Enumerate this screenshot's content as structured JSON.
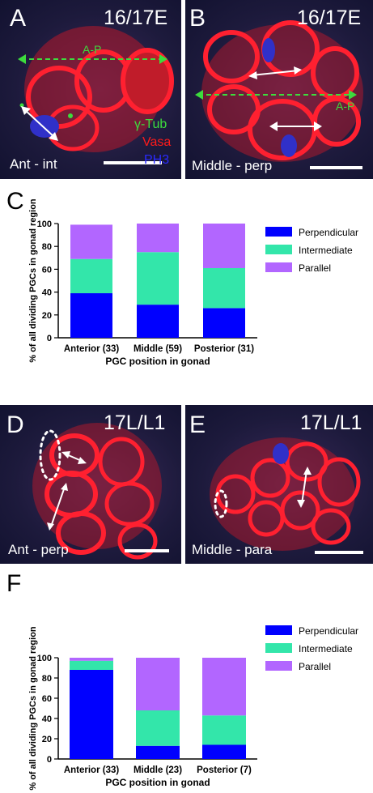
{
  "panels": {
    "A": {
      "letter": "A",
      "stage": "16/17E",
      "axis_label": "A-P",
      "stains": [
        {
          "label": "γ-Tub",
          "color": "#3ddc3d"
        },
        {
          "label": "Vasa",
          "color": "#ff1a1a"
        },
        {
          "label": "PH3",
          "color": "#2a2aff"
        }
      ],
      "condition": "Ant - int"
    },
    "B": {
      "letter": "B",
      "stage": "16/17E",
      "axis_label": "A-P",
      "condition": "Middle - perp"
    },
    "C": {
      "letter": "C"
    },
    "D": {
      "letter": "D",
      "stage": "17L/L1",
      "condition": "Ant - perp"
    },
    "E": {
      "letter": "E",
      "stage": "17L/L1",
      "condition": "Middle - para"
    },
    "F": {
      "letter": "F"
    }
  },
  "colors": {
    "perpendicular": "#0000ff",
    "intermediate": "#33e6aa",
    "parallel": "#b266ff",
    "cell_red": "#e0202a",
    "scale_bar": "#ffffff"
  },
  "chart_data": [
    {
      "type": "bar",
      "stacked": true,
      "categories": [
        "Anterior (33)",
        "Middle (59)",
        "Posterior (31)"
      ],
      "series": [
        {
          "name": "Perpendicular",
          "values": [
            39,
            29,
            26
          ]
        },
        {
          "name": "Intermediate",
          "values": [
            30,
            46,
            35
          ]
        },
        {
          "name": "Parallel",
          "values": [
            30,
            25,
            39
          ]
        }
      ],
      "xlabel": "PGC position in gonad",
      "ylabel": "% of all dividing  PGCs in gonad region",
      "ylim": [
        0,
        100
      ],
      "yticks": [
        0,
        20,
        40,
        60,
        80,
        100
      ],
      "legend": "right"
    },
    {
      "type": "bar",
      "stacked": true,
      "categories": [
        "Anterior (33)",
        "Middle (23)",
        "Posterior (7)"
      ],
      "series": [
        {
          "name": "Perpendicular",
          "values": [
            88,
            13,
            14
          ]
        },
        {
          "name": "Intermediate",
          "values": [
            9,
            35,
            29
          ]
        },
        {
          "name": "Parallel",
          "values": [
            3,
            52,
            57
          ]
        }
      ],
      "xlabel": "PGC position in gonad",
      "ylabel": "% of all dividing PGCs in gonad region",
      "ylim": [
        0,
        100
      ],
      "yticks": [
        0,
        20,
        40,
        60,
        80,
        100
      ],
      "legend": "right"
    }
  ]
}
